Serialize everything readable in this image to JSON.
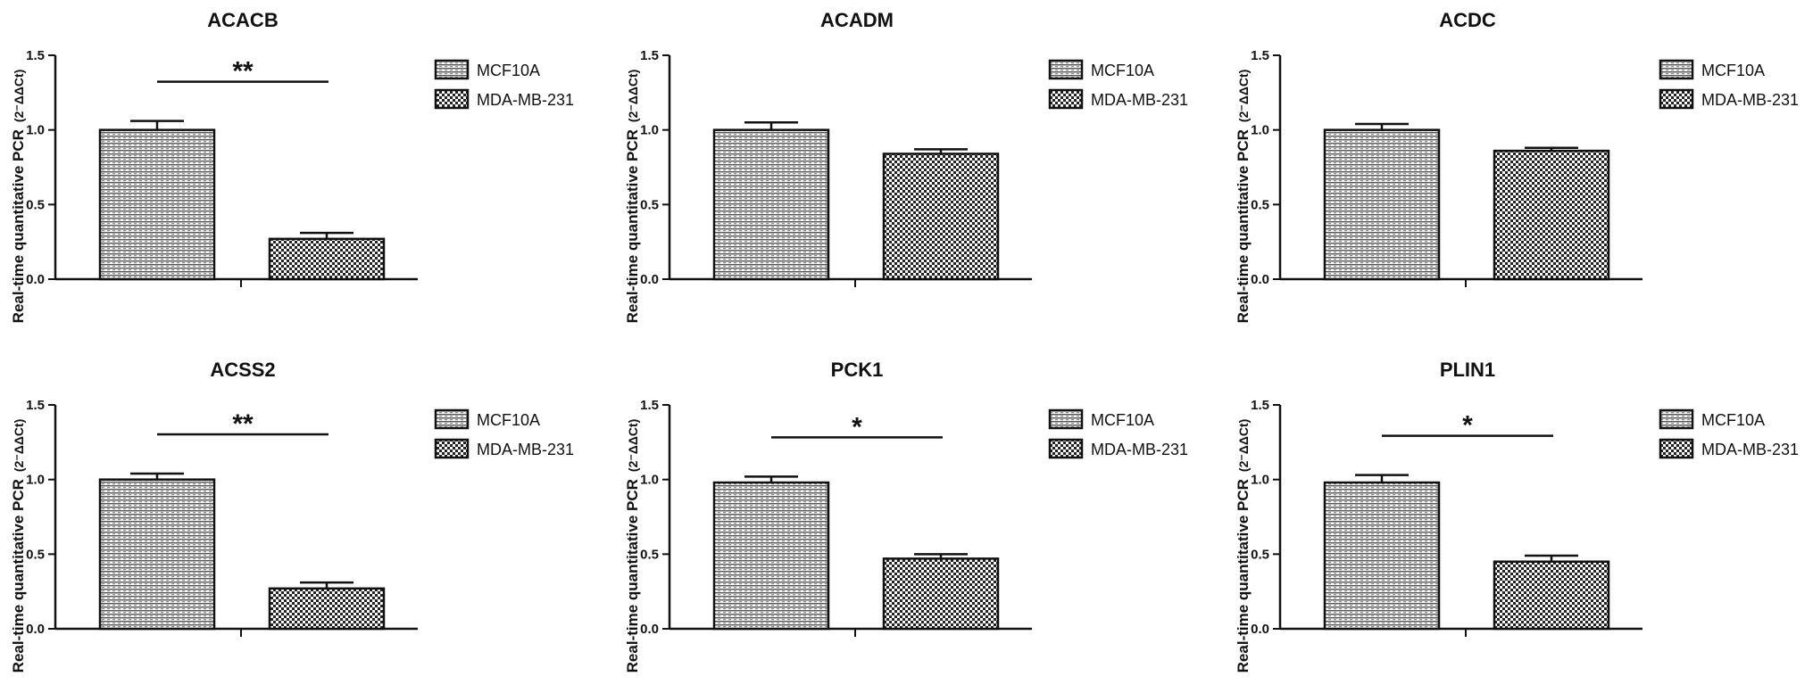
{
  "figure": {
    "y_axis_label": "Real-time quantitative PCR",
    "y_axis_unit": "(2⁻ΔΔCt)"
  },
  "colors": {
    "ink": "#111111",
    "bar_fill_background": "#ffffff"
  },
  "chart_data": [
    {
      "type": "bar",
      "title": "ACACB",
      "categories": [
        "MCF10A",
        "MDA-MB-231"
      ],
      "values": [
        1.0,
        0.27
      ],
      "errors": [
        0.06,
        0.04
      ],
      "ylim": [
        0,
        1.5
      ],
      "yticks": [
        "0.0",
        "0.5",
        "1.0",
        "1.5"
      ],
      "significance": "**",
      "legend": [
        "MCF10A",
        "MDA-MB-231"
      ],
      "legend_position": "right",
      "grid": false
    },
    {
      "type": "bar",
      "title": "ACADM",
      "categories": [
        "MCF10A",
        "MDA-MB-231"
      ],
      "values": [
        1.0,
        0.84
      ],
      "errors": [
        0.05,
        0.03
      ],
      "ylim": [
        0,
        1.5
      ],
      "yticks": [
        "0.0",
        "0.5",
        "1.0",
        "1.5"
      ],
      "significance": "",
      "legend": [
        "MCF10A",
        "MDA-MB-231"
      ],
      "legend_position": "right",
      "grid": false
    },
    {
      "type": "bar",
      "title": "ACDC",
      "categories": [
        "MCF10A",
        "MDA-MB-231"
      ],
      "values": [
        1.0,
        0.86
      ],
      "errors": [
        0.04,
        0.02
      ],
      "ylim": [
        0,
        1.5
      ],
      "yticks": [
        "0.0",
        "0.5",
        "1.0",
        "1.5"
      ],
      "significance": "",
      "legend": [
        "MCF10A",
        "MDA-MB-231"
      ],
      "legend_position": "right",
      "grid": false
    },
    {
      "type": "bar",
      "title": "ACSS2",
      "categories": [
        "MCF10A",
        "MDA-MB-231"
      ],
      "values": [
        1.0,
        0.27
      ],
      "errors": [
        0.04,
        0.04
      ],
      "ylim": [
        0,
        1.5
      ],
      "yticks": [
        "0.0",
        "0.5",
        "1.0",
        "1.5"
      ],
      "significance": "**",
      "legend": [
        "MCF10A",
        "MDA-MB-231"
      ],
      "legend_position": "right",
      "grid": false
    },
    {
      "type": "bar",
      "title": "PCK1",
      "categories": [
        "MCF10A",
        "MDA-MB-231"
      ],
      "values": [
        0.98,
        0.47
      ],
      "errors": [
        0.04,
        0.03
      ],
      "ylim": [
        0,
        1.5
      ],
      "yticks": [
        "0.0",
        "0.5",
        "1.0",
        "1.5"
      ],
      "significance": "*",
      "legend": [
        "MCF10A",
        "MDA-MB-231"
      ],
      "legend_position": "right",
      "grid": false
    },
    {
      "type": "bar",
      "title": "PLIN1",
      "categories": [
        "MCF10A",
        "MDA-MB-231"
      ],
      "values": [
        0.98,
        0.45
      ],
      "errors": [
        0.05,
        0.04
      ],
      "ylim": [
        0,
        1.5
      ],
      "yticks": [
        "0.0",
        "0.5",
        "1.0",
        "1.5"
      ],
      "significance": "*",
      "legend": [
        "MCF10A",
        "MDA-MB-231"
      ],
      "legend_position": "right",
      "grid": false
    }
  ]
}
